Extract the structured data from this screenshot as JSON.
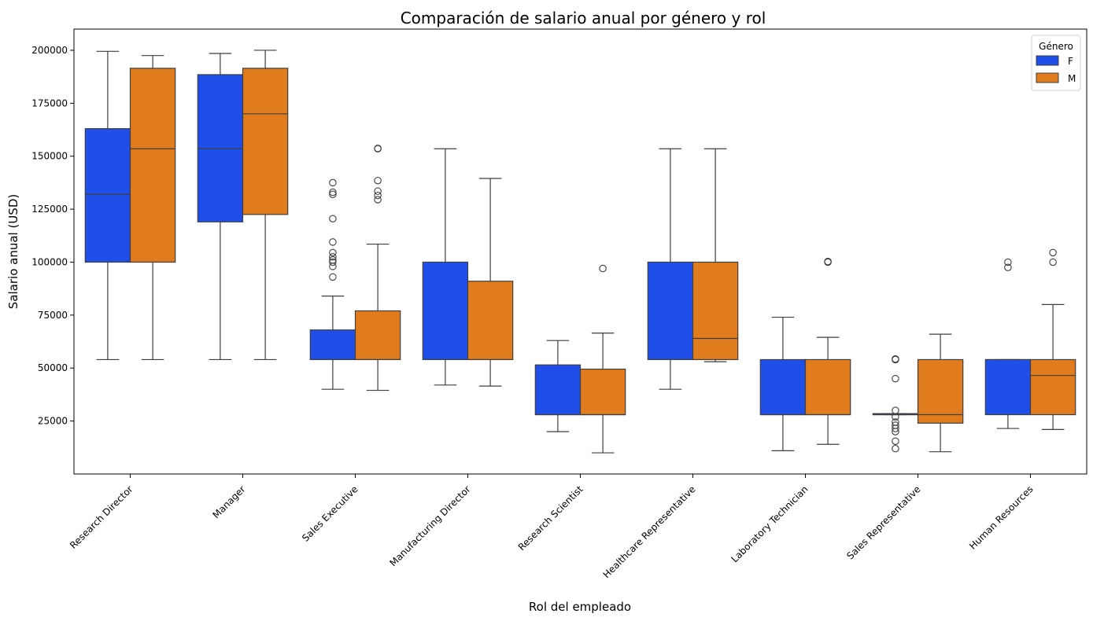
{
  "chart_data": {
    "type": "box",
    "title": "Comparación de salario anual por género y rol",
    "xlabel": "Rol del empleado",
    "ylabel": "Salario anual (USD)",
    "ylim": [
      0,
      210000
    ],
    "yticks": [
      25000,
      50000,
      75000,
      100000,
      125000,
      150000,
      175000,
      200000
    ],
    "categories": [
      "Research Director",
      "Manager",
      "Sales Executive",
      "Manufacturing Director",
      "Research Scientist",
      "Healthcare Representative",
      "Laboratory Technician",
      "Sales Representative",
      "Human Resources"
    ],
    "legend": {
      "title": "Género",
      "placement": "top-right"
    },
    "grid": false,
    "series": [
      {
        "name": "F",
        "color": "#1f4fe8",
        "boxes": [
          {
            "whislo": 54000,
            "q1": 100000,
            "med": 132000,
            "q3": 163000,
            "whishi": 199500,
            "fliers": []
          },
          {
            "whislo": 54000,
            "q1": 119000,
            "med": 153500,
            "q3": 188500,
            "whishi": 198500,
            "fliers": []
          },
          {
            "whislo": 40000,
            "q1": 54000,
            "med": 54000,
            "q3": 68000,
            "whishi": 84000,
            "fliers": [
              93000,
              98000,
              100000,
              101000,
              102500,
              104500,
              109500,
              120500,
              132000,
              133000,
              137500
            ]
          },
          {
            "whislo": 42000,
            "q1": 54000,
            "med": 54000,
            "q3": 100000,
            "whishi": 153500,
            "fliers": []
          },
          {
            "whislo": 20000,
            "q1": 28000,
            "med": 28000,
            "q3": 51500,
            "whishi": 63000,
            "fliers": []
          },
          {
            "whislo": 40000,
            "q1": 54000,
            "med": 54000,
            "q3": 100000,
            "whishi": 153500,
            "fliers": []
          },
          {
            "whislo": 11000,
            "q1": 28000,
            "med": 28000,
            "q3": 54000,
            "whishi": 74000,
            "fliers": []
          },
          {
            "whislo": 28000,
            "q1": 28000,
            "med": 28000,
            "q3": 28500,
            "whishi": 28500,
            "fliers": [
              12000,
              15500,
              20000,
              21500,
              23000,
              24500,
              27000,
              30000,
              45000,
              54000,
              54300
            ]
          },
          {
            "whislo": 21500,
            "q1": 28000,
            "med": 54000,
            "q3": 54000,
            "whishi": 54000,
            "fliers": [
              97500,
              100000
            ]
          }
        ]
      },
      {
        "name": "M",
        "color": "#e17c1e",
        "boxes": [
          {
            "whislo": 54000,
            "q1": 100000,
            "med": 153500,
            "q3": 191500,
            "whishi": 197500,
            "fliers": []
          },
          {
            "whislo": 54000,
            "q1": 122500,
            "med": 170000,
            "q3": 191500,
            "whishi": 200000,
            "fliers": []
          },
          {
            "whislo": 39500,
            "q1": 54000,
            "med": 54000,
            "q3": 77000,
            "whishi": 108500,
            "fliers": [
              129500,
              131500,
              133500,
              138500,
              153500,
              153700
            ]
          },
          {
            "whislo": 41500,
            "q1": 54000,
            "med": 54000,
            "q3": 91000,
            "whishi": 139500,
            "fliers": []
          },
          {
            "whislo": 10000,
            "q1": 28000,
            "med": 28000,
            "q3": 49500,
            "whishi": 66500,
            "fliers": [
              97000
            ]
          },
          {
            "whislo": 53000,
            "q1": 54000,
            "med": 64000,
            "q3": 100000,
            "whishi": 153500,
            "fliers": []
          },
          {
            "whislo": 14000,
            "q1": 28000,
            "med": 28000,
            "q3": 54000,
            "whishi": 64500,
            "fliers": [
              100000,
              100300
            ]
          },
          {
            "whislo": 10500,
            "q1": 24000,
            "med": 28000,
            "q3": 54000,
            "whishi": 66000,
            "fliers": []
          },
          {
            "whislo": 21000,
            "q1": 28000,
            "med": 46500,
            "q3": 54000,
            "whishi": 80000,
            "fliers": [
              100000,
              104500
            ]
          }
        ]
      }
    ]
  }
}
